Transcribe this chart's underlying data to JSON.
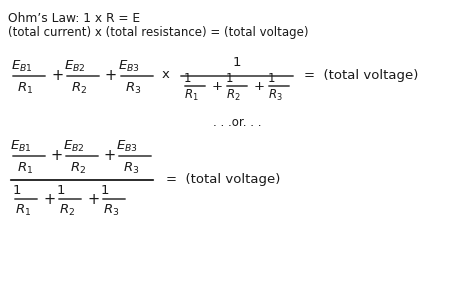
{
  "bg_color": "#ffffff",
  "text_color": "#1a1a1a",
  "title_line1": "Ohm’s Law: 1 x R = E",
  "title_line2": "(total current) x (total resistance) = (total voltage)",
  "or_text": ". . .or. . .",
  "figsize": [
    4.74,
    3.04
  ],
  "dpi": 100,
  "fs_text": 8.5,
  "fs_math": 9.5,
  "fs_math_small": 8.5
}
